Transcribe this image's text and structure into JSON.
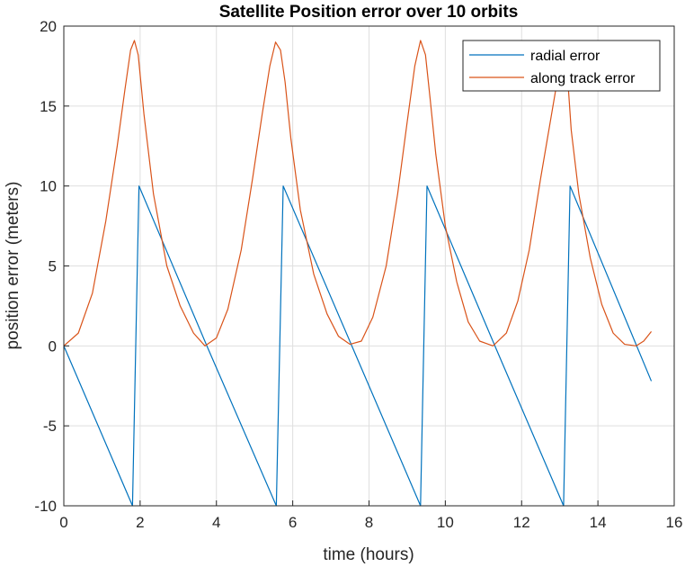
{
  "chart_data": {
    "type": "line",
    "title": "Satellite Position error over 10 orbits",
    "xlabel": "time (hours)",
    "ylabel": "position error (meters)",
    "xlim": [
      0,
      16
    ],
    "ylim": [
      -10,
      20
    ],
    "xticks": [
      0,
      2,
      4,
      6,
      8,
      10,
      12,
      14,
      16
    ],
    "yticks": [
      -10,
      -5,
      0,
      5,
      10,
      15,
      20
    ],
    "grid": true,
    "legend_position": "top-right",
    "series": [
      {
        "name": "radial error",
        "color": "#0072BD",
        "x": [
          0,
          1.8,
          1.97,
          3.75,
          5.57,
          5.75,
          7.55,
          9.35,
          9.52,
          11.3,
          13.1,
          13.27,
          15.4
        ],
        "y": [
          0,
          -10,
          10,
          0,
          -10,
          10,
          0,
          -10,
          10,
          0,
          -10,
          10,
          -2.2
        ]
      },
      {
        "name": "along track error",
        "color": "#D95319",
        "x": [
          0,
          0.38,
          0.75,
          1.1,
          1.4,
          1.6,
          1.75,
          1.85,
          1.95,
          2.1,
          2.35,
          2.7,
          3.05,
          3.4,
          3.7,
          4.0,
          4.3,
          4.65,
          4.95,
          5.2,
          5.4,
          5.55,
          5.68,
          5.8,
          5.95,
          6.2,
          6.55,
          6.9,
          7.2,
          7.5,
          7.8,
          8.1,
          8.45,
          8.75,
          9.0,
          9.2,
          9.35,
          9.48,
          9.6,
          9.75,
          10.0,
          10.3,
          10.6,
          10.9,
          11.25,
          11.6,
          11.9,
          12.2,
          12.5,
          12.75,
          12.95,
          13.1,
          13.2,
          13.3,
          13.5,
          13.8,
          14.1,
          14.4,
          14.7,
          15.0,
          15.2,
          15.4
        ],
        "y": [
          0,
          0.8,
          3.3,
          7.8,
          12.5,
          16.0,
          18.5,
          19.1,
          18.2,
          14.5,
          9.5,
          5.0,
          2.5,
          0.8,
          0,
          0.5,
          2.3,
          6.0,
          10.5,
          14.5,
          17.5,
          19.0,
          18.5,
          16.5,
          13.0,
          8.5,
          4.5,
          2.0,
          0.6,
          0.1,
          0.3,
          1.8,
          5.0,
          9.5,
          14.0,
          17.5,
          19.1,
          18.2,
          15.5,
          12.0,
          7.5,
          4.0,
          1.5,
          0.3,
          0,
          0.8,
          2.8,
          6.0,
          10.5,
          14.0,
          16.8,
          18.5,
          17.0,
          13.5,
          9.5,
          5.5,
          2.6,
          0.8,
          0.1,
          0,
          0.3,
          0.9
        ]
      }
    ]
  }
}
